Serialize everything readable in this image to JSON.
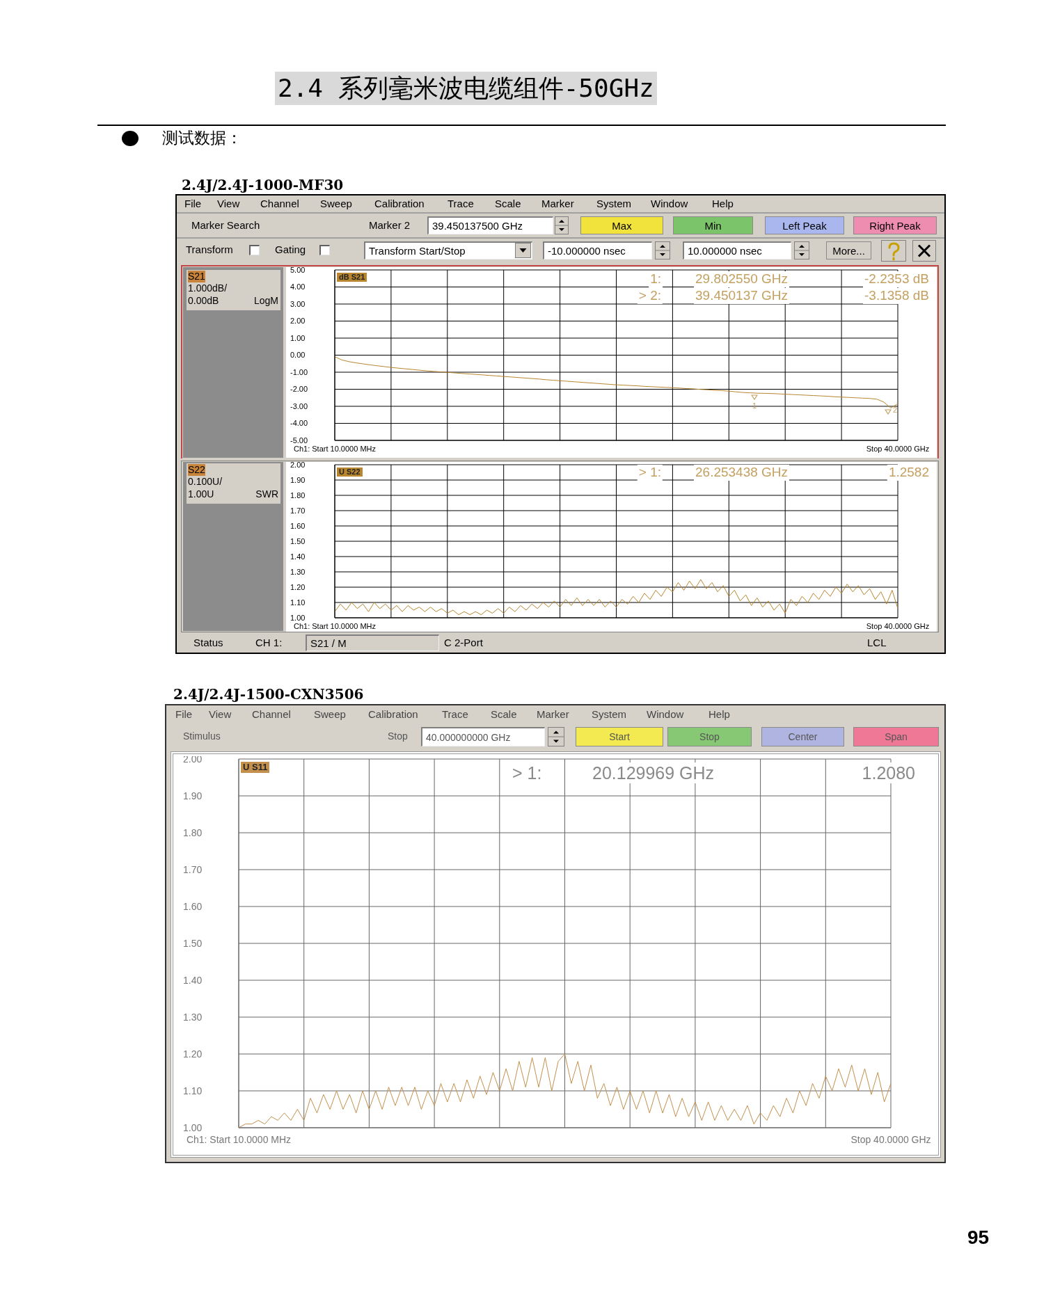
{
  "chart_data": [
    {
      "type": "other",
      "title": "2.4 系列毫米波电缆组件-50GHz",
      "annotations": [
        "测试数据：",
        "95"
      ]
    },
    {
      "type": "line",
      "title": "2.4J/2.4J-1000-MF30",
      "annotations": [
        "File",
        "View",
        "Channel",
        "Sweep",
        "Calibration",
        "Trace",
        "Scale",
        "Marker",
        "System",
        "Window",
        "Help",
        "Marker Search",
        "Marker 2",
        "39.450137500 GHz",
        "Max",
        "Min",
        "Left Peak",
        "Right Peak",
        "Transform",
        "Gating",
        "Transform Start/Stop",
        "-10.000000 nsec",
        "10.000000 nsec",
        "More...",
        "S21",
        "1.000dB/",
        "0.00dB",
        "LogM",
        "1:",
        "29.802550 GHz",
        "-2.2353 dB",
        "> 2:",
        "39.450137 GHz",
        "-3.1358 dB",
        "1",
        "2"
      ],
      "categories": [
        "Ch1: Start 10.0000 MHz",
        null,
        null,
        null,
        null,
        null,
        null,
        null,
        null,
        null,
        null,
        null,
        null,
        null,
        null,
        null,
        null,
        null,
        null,
        null,
        null,
        null,
        null,
        null,
        null,
        null,
        null,
        null,
        null,
        null,
        null,
        null,
        null,
        null,
        null,
        null,
        null,
        null,
        null,
        null,
        null,
        null,
        null,
        null,
        null,
        null,
        null,
        null,
        null,
        null,
        null,
        null,
        null,
        null,
        null,
        null,
        null,
        null,
        null,
        null,
        null,
        null,
        null,
        null,
        null,
        null,
        null,
        null,
        null,
        null,
        null,
        null,
        null,
        null,
        null,
        null,
        null,
        null,
        null,
        null,
        "Stop 40.0000 GHz"
      ],
      "series": [
        {
          "name": "dB S21",
          "color": "#b8862e",
          "values": [
            -0.09,
            -0.28,
            -0.38,
            -0.45,
            -0.51,
            -0.57,
            -0.62,
            -0.67,
            -0.72,
            -0.76,
            -0.8,
            -0.84,
            -0.88,
            -0.92,
            -0.95,
            -0.98,
            -1.01,
            -1.04,
            -1.07,
            -1.1,
            -1.13,
            -1.16,
            -1.19,
            -1.22,
            -1.25,
            -1.28,
            -1.31,
            -1.34,
            -1.37,
            -1.4,
            -1.44,
            -1.47,
            -1.5,
            -1.53,
            -1.56,
            -1.59,
            -1.62,
            -1.65,
            -1.68,
            -1.71,
            -1.74,
            -1.76,
            -1.78,
            -1.8,
            -1.83,
            -1.85,
            -1.87,
            -1.89,
            -1.91,
            -1.93,
            -1.96,
            -1.98,
            -2.01,
            -2.03,
            -2.06,
            -2.08,
            -2.11,
            -2.15,
            -2.19,
            -2.21,
            -2.23,
            -2.24,
            -2.25,
            -2.27,
            -2.29,
            -2.31,
            -2.33,
            -2.35,
            -2.37,
            -2.39,
            -2.41,
            -2.44,
            -2.46,
            -2.48,
            -2.5,
            -2.52,
            -2.54,
            -2.58,
            -2.75,
            -3.1,
            -2.85
          ]
        }
      ],
      "ylim": [
        -5,
        5
      ],
      "yticks": [
        {
          "value": 5,
          "label": "5.00"
        },
        {
          "value": 4,
          "label": "4.00"
        },
        {
          "value": 3,
          "label": "3.00"
        },
        {
          "value": 2,
          "label": "2.00"
        },
        {
          "value": 1,
          "label": "1.00"
        },
        {
          "value": 0,
          "label": "0.00"
        },
        {
          "value": -1,
          "label": "-1.00"
        },
        {
          "value": -2,
          "label": "-2.00"
        },
        {
          "value": -3,
          "label": "-3.00"
        },
        {
          "value": -4,
          "label": "-4.00"
        },
        {
          "value": -5,
          "label": "-5.00"
        }
      ],
      "grid": true,
      "legend": "top left"
    },
    {
      "type": "line",
      "annotations": [
        "S22",
        "0.100U/",
        "1.00U",
        "SWR",
        "> 1:",
        "26.253438 GHz",
        "1.2582",
        "Status",
        "CH 1:",
        "S21 / M",
        "C 2-Port",
        "LCL"
      ],
      "categories": [
        "Ch1: Start 10.0000 MHz",
        null,
        null,
        null,
        null,
        null,
        null,
        null,
        null,
        null,
        null,
        null,
        null,
        null,
        null,
        null,
        null,
        null,
        null,
        null,
        null,
        null,
        null,
        null,
        null,
        null,
        null,
        null,
        null,
        null,
        null,
        null,
        null,
        null,
        null,
        null,
        null,
        null,
        null,
        null,
        null,
        null,
        null,
        null,
        null,
        null,
        null,
        null,
        null,
        null,
        null,
        null,
        null,
        null,
        null,
        null,
        null,
        null,
        null,
        null,
        null,
        null,
        null,
        null,
        null,
        null,
        null,
        null,
        null,
        null,
        null,
        null,
        null,
        null,
        null,
        null,
        null,
        null,
        null,
        null,
        null,
        null,
        null,
        null,
        null,
        null,
        null,
        null,
        null,
        null,
        null,
        null,
        null,
        null,
        null,
        null,
        null,
        null,
        null,
        null,
        "Stop 40.0000 GHz"
      ],
      "series": [
        {
          "name": "U S22",
          "color": "#b8862e",
          "values": [
            1.04,
            1.09,
            1.05,
            1.1,
            1.06,
            1.09,
            1.04,
            1.1,
            1.06,
            1.09,
            1.05,
            1.08,
            1.04,
            1.08,
            1.05,
            1.07,
            1.04,
            1.07,
            1.04,
            1.06,
            1.03,
            1.05,
            1.02,
            1.04,
            1.02,
            1.04,
            1.02,
            1.05,
            1.03,
            1.06,
            1.03,
            1.07,
            1.04,
            1.08,
            1.05,
            1.09,
            1.06,
            1.1,
            1.07,
            1.11,
            1.07,
            1.12,
            1.08,
            1.13,
            1.08,
            1.12,
            1.08,
            1.12,
            1.07,
            1.11,
            1.07,
            1.12,
            1.09,
            1.14,
            1.1,
            1.16,
            1.12,
            1.18,
            1.14,
            1.2,
            1.17,
            1.23,
            1.18,
            1.24,
            1.19,
            1.25,
            1.19,
            1.23,
            1.17,
            1.21,
            1.14,
            1.18,
            1.11,
            1.15,
            1.08,
            1.13,
            1.07,
            1.11,
            1.05,
            1.09,
            1.03,
            1.12,
            1.08,
            1.14,
            1.1,
            1.16,
            1.12,
            1.18,
            1.14,
            1.2,
            1.16,
            1.22,
            1.17,
            1.21,
            1.15,
            1.19,
            1.12,
            1.17,
            1.09,
            1.18,
            1.06
          ]
        }
      ],
      "ylim": [
        1,
        2
      ],
      "yticks": [
        {
          "value": 2,
          "label": "2.00"
        },
        {
          "value": 1.9,
          "label": "1.90"
        },
        {
          "value": 1.8,
          "label": "1.80"
        },
        {
          "value": 1.7,
          "label": "1.70"
        },
        {
          "value": 1.6,
          "label": "1.60"
        },
        {
          "value": 1.5,
          "label": "1.50"
        },
        {
          "value": 1.4,
          "label": "1.40"
        },
        {
          "value": 1.3,
          "label": "1.30"
        },
        {
          "value": 1.2,
          "label": "1.20"
        },
        {
          "value": 1.1,
          "label": "1.10"
        },
        {
          "value": 1,
          "label": "1.00"
        }
      ],
      "grid": true,
      "legend": "top left"
    },
    {
      "type": "line",
      "title": "2.4J/2.4J-1500-CXN3506",
      "annotations": [
        "File",
        "View",
        "Channel",
        "Sweep",
        "Calibration",
        "Trace",
        "Scale",
        "Marker",
        "System",
        "Window",
        "Help",
        "Stimulus",
        "Stop",
        "40.000000000 GHz",
        "Start",
        "Stop",
        "Center",
        "Span",
        "> 1:",
        "20.129969 GHz",
        "1.2080"
      ],
      "categories": [
        "Ch1: Start 10.0000 MHz",
        null,
        null,
        null,
        null,
        null,
        null,
        null,
        null,
        null,
        null,
        null,
        null,
        null,
        null,
        null,
        null,
        null,
        null,
        null,
        null,
        null,
        null,
        null,
        null,
        null,
        null,
        null,
        null,
        null,
        null,
        null,
        null,
        null,
        null,
        null,
        null,
        null,
        null,
        null,
        null,
        null,
        null,
        null,
        null,
        null,
        null,
        null,
        null,
        null,
        null,
        null,
        null,
        null,
        null,
        null,
        null,
        null,
        null,
        null,
        null,
        null,
        null,
        null,
        null,
        null,
        null,
        null,
        null,
        null,
        null,
        null,
        null,
        null,
        null,
        null,
        null,
        null,
        null,
        null,
        null,
        null,
        null,
        null,
        null,
        null,
        null,
        null,
        null,
        null,
        null,
        null,
        null,
        null,
        null,
        null,
        null,
        null,
        null,
        null,
        "Stop 40.0000 GHz"
      ],
      "series": [
        {
          "name": "U S11",
          "color": "#c4904e",
          "values": [
            1.0,
            1.01,
            1.01,
            1.02,
            1.01,
            1.03,
            1.02,
            1.04,
            1.02,
            1.05,
            1.02,
            1.08,
            1.04,
            1.09,
            1.05,
            1.1,
            1.05,
            1.09,
            1.04,
            1.1,
            1.05,
            1.1,
            1.05,
            1.11,
            1.06,
            1.11,
            1.06,
            1.11,
            1.05,
            1.1,
            1.06,
            1.12,
            1.07,
            1.12,
            1.07,
            1.13,
            1.08,
            1.14,
            1.09,
            1.15,
            1.1,
            1.16,
            1.1,
            1.18,
            1.11,
            1.19,
            1.11,
            1.19,
            1.1,
            1.18,
            1.2,
            1.12,
            1.18,
            1.1,
            1.17,
            1.08,
            1.12,
            1.06,
            1.11,
            1.05,
            1.1,
            1.05,
            1.1,
            1.04,
            1.1,
            1.04,
            1.09,
            1.03,
            1.08,
            1.03,
            1.07,
            1.02,
            1.07,
            1.02,
            1.06,
            1.02,
            1.05,
            1.02,
            1.06,
            1.01,
            1.04,
            1.02,
            1.06,
            1.03,
            1.08,
            1.04,
            1.1,
            1.06,
            1.12,
            1.08,
            1.14,
            1.1,
            1.16,
            1.11,
            1.17,
            1.1,
            1.16,
            1.09,
            1.15,
            1.07,
            1.12
          ]
        }
      ],
      "ylim": [
        1,
        2
      ],
      "yticks": [
        {
          "value": 2,
          "label": "2.00"
        },
        {
          "value": 1.9,
          "label": "1.90"
        },
        {
          "value": 1.8,
          "label": "1.80"
        },
        {
          "value": 1.7,
          "label": "1.70"
        },
        {
          "value": 1.6,
          "label": "1.60"
        },
        {
          "value": 1.5,
          "label": "1.50"
        },
        {
          "value": 1.4,
          "label": "1.40"
        },
        {
          "value": 1.3,
          "label": "1.30"
        },
        {
          "value": 1.2,
          "label": "1.20"
        },
        {
          "value": 1.1,
          "label": "1.10"
        },
        {
          "value": 1,
          "label": "1.00"
        }
      ],
      "grid": true,
      "legend": "top left"
    }
  ]
}
